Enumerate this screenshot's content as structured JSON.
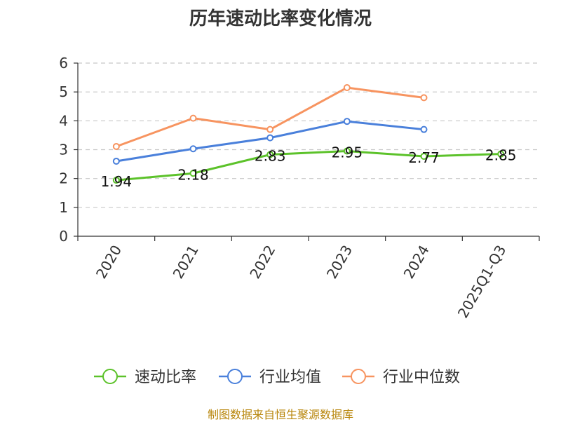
{
  "chart_data": {
    "type": "line",
    "title": "历年速动比率变化情况",
    "categories": [
      "2020",
      "2021",
      "2022",
      "2023",
      "2024",
      "2025Q1-Q3"
    ],
    "ylim": [
      0,
      6
    ],
    "yticks": [
      0,
      1,
      2,
      3,
      4,
      5,
      6
    ],
    "grid": true,
    "legend_position": "bottom",
    "series": [
      {
        "name": "速动比率",
        "color": "#5cc22a",
        "values": [
          1.94,
          2.18,
          2.83,
          2.95,
          2.77,
          2.85
        ],
        "labels": [
          "1.94",
          "2.18",
          "2.83",
          "2.95",
          "2.77",
          "2.85"
        ]
      },
      {
        "name": "行业均值",
        "color": "#4a80db",
        "values": [
          2.6,
          3.03,
          3.41,
          3.98,
          3.7,
          null
        ]
      },
      {
        "name": "行业中位数",
        "color": "#f79460",
        "values": [
          3.11,
          4.09,
          3.7,
          5.15,
          4.8,
          null
        ]
      }
    ],
    "source": "制图数据来自恒生聚源数据库"
  }
}
